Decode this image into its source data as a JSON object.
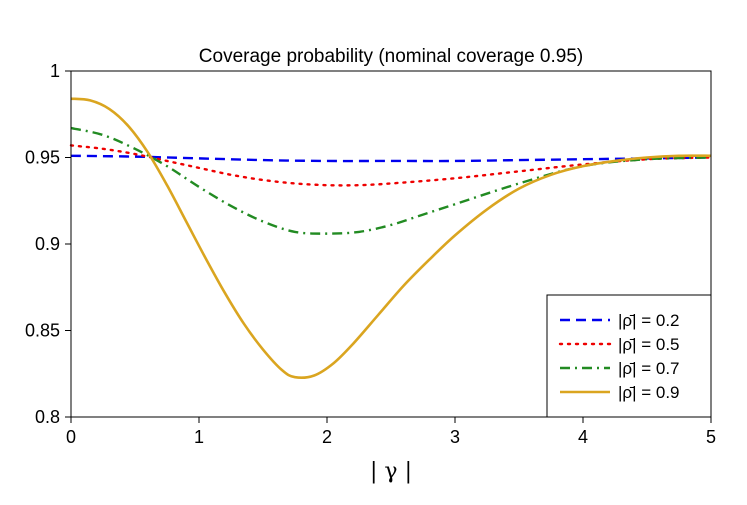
{
  "chart_data": {
    "type": "line",
    "title": "Coverage probability (nominal coverage 0.95)",
    "xlabel": "| γ |",
    "ylabel": "",
    "xlim": [
      0,
      5
    ],
    "ylim": [
      0.8,
      1.0
    ],
    "xticks": [
      0,
      1,
      2,
      3,
      4,
      5
    ],
    "xtick_labels": [
      "0",
      "1",
      "2",
      "3",
      "4",
      "5"
    ],
    "yticks": [
      0.8,
      0.85,
      0.9,
      0.95,
      1.0
    ],
    "ytick_labels": [
      "0.8",
      "0.85",
      "0.9",
      "0.95",
      "1"
    ],
    "grid": false,
    "legend_position": "bottom-right",
    "series": [
      {
        "name": "|ρ̄| = 0.2",
        "color": "#0000ee",
        "dash": "dashed",
        "x": [
          0,
          0.5,
          1,
          1.5,
          2,
          2.5,
          3,
          3.5,
          4,
          4.5,
          5
        ],
        "y": [
          0.951,
          0.9505,
          0.9495,
          0.9485,
          0.948,
          0.948,
          0.948,
          0.9485,
          0.949,
          0.9495,
          0.95
        ]
      },
      {
        "name": "|ρ̄| = 0.5",
        "color": "#ee0000",
        "dash": "dotted",
        "x": [
          0,
          0.25,
          0.5,
          0.75,
          1,
          1.25,
          1.5,
          1.75,
          2,
          2.25,
          2.5,
          3,
          3.5,
          4,
          4.5,
          5
        ],
        "y": [
          0.957,
          0.955,
          0.952,
          0.948,
          0.944,
          0.94,
          0.937,
          0.935,
          0.934,
          0.934,
          0.935,
          0.938,
          0.942,
          0.946,
          0.949,
          0.95
        ]
      },
      {
        "name": "|ρ̄| = 0.7",
        "color": "#228b22",
        "dash": "dashdot",
        "x": [
          0,
          0.25,
          0.5,
          0.75,
          1,
          1.25,
          1.5,
          1.75,
          2,
          2.25,
          2.5,
          2.75,
          3,
          3.5,
          4,
          4.5,
          5
        ],
        "y": [
          0.967,
          0.963,
          0.955,
          0.945,
          0.933,
          0.922,
          0.913,
          0.907,
          0.906,
          0.907,
          0.911,
          0.917,
          0.923,
          0.935,
          0.945,
          0.949,
          0.95
        ]
      },
      {
        "name": "|ρ̄| = 0.9",
        "color": "#daa520",
        "dash": "solid",
        "x": [
          0,
          0.15,
          0.3,
          0.45,
          0.6,
          0.75,
          0.9,
          1.05,
          1.2,
          1.35,
          1.5,
          1.65,
          1.75,
          1.9,
          2.05,
          2.2,
          2.4,
          2.6,
          2.8,
          3,
          3.25,
          3.5,
          3.75,
          4,
          4.25,
          4.5,
          4.75,
          5
        ],
        "y": [
          0.984,
          0.983,
          0.978,
          0.968,
          0.953,
          0.934,
          0.913,
          0.892,
          0.872,
          0.854,
          0.839,
          0.827,
          0.823,
          0.824,
          0.831,
          0.842,
          0.859,
          0.876,
          0.891,
          0.905,
          0.92,
          0.932,
          0.94,
          0.945,
          0.948,
          0.95,
          0.951,
          0.951
        ]
      }
    ]
  }
}
